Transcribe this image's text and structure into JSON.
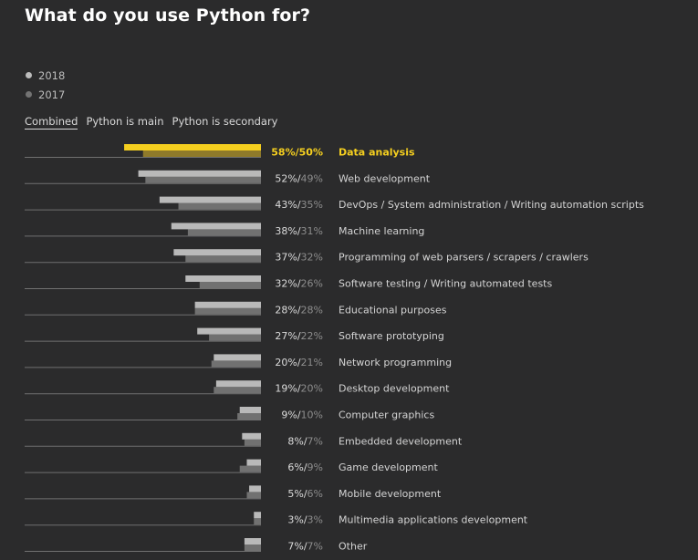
{
  "title": "What do you use Python for?",
  "legend": {
    "items": [
      {
        "label": "2018",
        "color": "#bcbcbc"
      },
      {
        "label": "2017",
        "color": "#737373"
      }
    ]
  },
  "tabs": [
    {
      "label": "Combined",
      "active": true
    },
    {
      "label": "Python is main",
      "active": false
    },
    {
      "label": "Python is secondary",
      "active": false
    }
  ],
  "colors": {
    "series_2018": "#b9b9b9",
    "series_2017": "#717171",
    "highlight_2018": "#f5cf1f",
    "highlight_2017": "#8f7a2a",
    "value_2018": "#dcdcdc",
    "value_2017": "#8d8d8d",
    "highlight_text": "#f5cf1f",
    "label_text": "#d4d4d4",
    "baseline": "#707070"
  },
  "chart_data": {
    "type": "bar",
    "orientation": "horizontal",
    "categories": [
      "Data analysis",
      "Web development",
      "DevOps / System administration / Writing automation scripts",
      "Machine learning",
      "Programming of web parsers / scrapers / crawlers",
      "Software testing / Writing automated tests",
      "Educational purposes",
      "Software prototyping",
      "Network programming",
      "Desktop development",
      "Computer graphics",
      "Embedded development",
      "Game development",
      "Mobile development",
      "Multimedia applications development",
      "Other"
    ],
    "series": [
      {
        "name": "2018",
        "values": [
          58,
          52,
          43,
          38,
          37,
          32,
          28,
          27,
          20,
          19,
          9,
          8,
          6,
          5,
          3,
          7
        ]
      },
      {
        "name": "2017",
        "values": [
          50,
          49,
          35,
          31,
          32,
          26,
          28,
          22,
          21,
          20,
          10,
          7,
          9,
          6,
          3,
          7
        ]
      }
    ],
    "value_labels": [
      {
        "v2018": "58%",
        "sep": "/",
        "v2017": "50%"
      },
      {
        "v2018": "52%",
        "sep": "/",
        "v2017": "49%"
      },
      {
        "v2018": "43%",
        "sep": "/",
        "v2017": "35%"
      },
      {
        "v2018": "38%",
        "sep": "/",
        "v2017": "31%"
      },
      {
        "v2018": "37%",
        "sep": "/",
        "v2017": "32%"
      },
      {
        "v2018": "32%",
        "sep": "/",
        "v2017": "26%"
      },
      {
        "v2018": "28%",
        "sep": "/",
        "v2017": "28%"
      },
      {
        "v2018": "27%",
        "sep": "/",
        "v2017": "22%"
      },
      {
        "v2018": "20%",
        "sep": "/",
        "v2017": "21%"
      },
      {
        "v2018": "19%",
        "sep": "/",
        "v2017": "20%"
      },
      {
        "v2018": "9%",
        "sep": "/",
        "v2017": "10%"
      },
      {
        "v2018": "8%",
        "sep": "/",
        "v2017": "7%"
      },
      {
        "v2018": "6%",
        "sep": "/",
        "v2017": "9%"
      },
      {
        "v2018": "5%",
        "sep": "/",
        "v2017": "6%"
      },
      {
        "v2018": "3%",
        "sep": "/",
        "v2017": "3%"
      },
      {
        "v2018": "7%",
        "sep": "/",
        "v2017": "7%"
      }
    ],
    "highlighted_index": 0,
    "xlim": [
      0,
      60
    ],
    "unit": "%",
    "grid": false,
    "legend_position": "top-left"
  }
}
